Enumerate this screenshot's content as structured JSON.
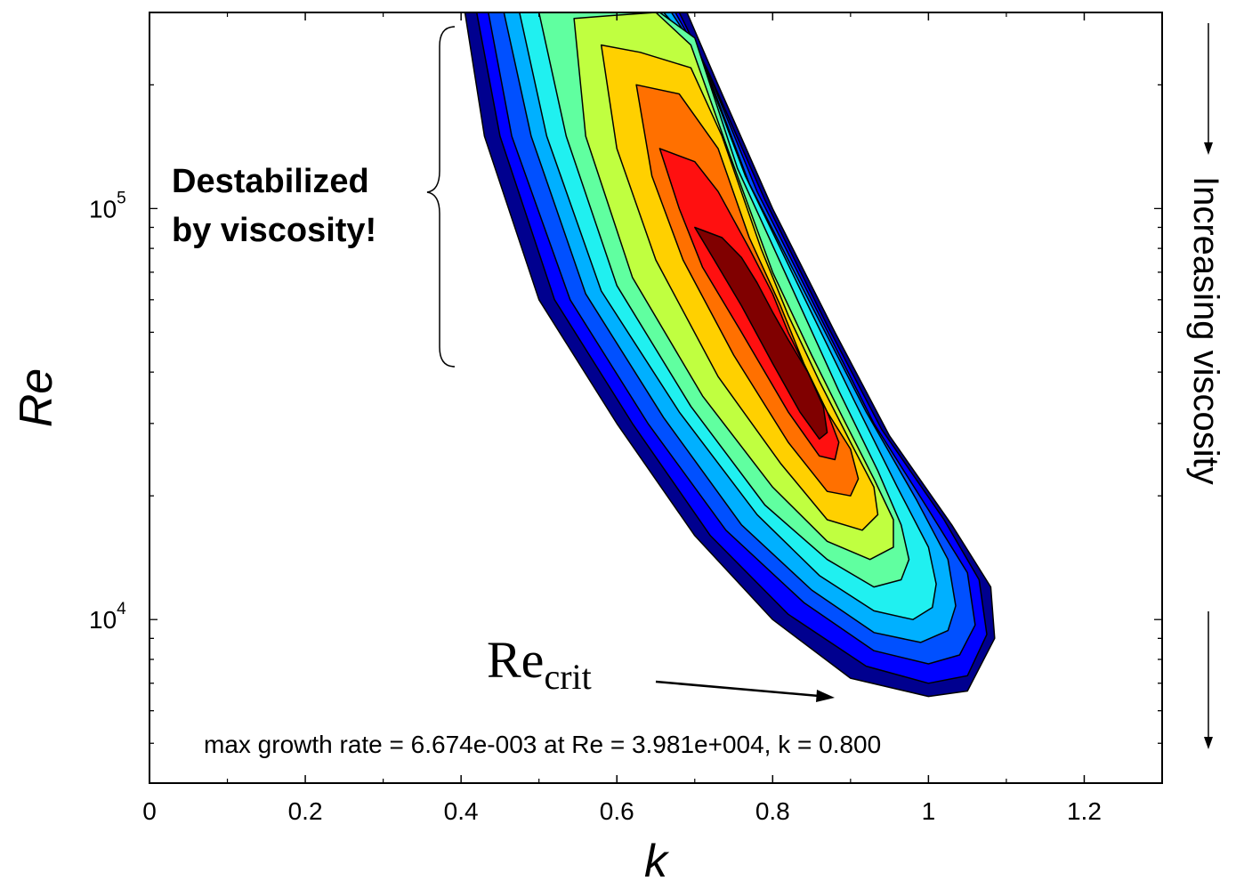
{
  "chart_data": {
    "type": "contour",
    "title": "",
    "xlabel": "k",
    "ylabel": "Re",
    "x_scale": "linear",
    "y_scale": "log",
    "xlim": [
      0,
      1.3
    ],
    "ylim": [
      4000,
      300000
    ],
    "x_ticks": [
      {
        "value": 0,
        "label": "0"
      },
      {
        "value": 0.2,
        "label": "0.2"
      },
      {
        "value": 0.4,
        "label": "0.4"
      },
      {
        "value": 0.6,
        "label": "0.6"
      },
      {
        "value": 0.8,
        "label": "0.8"
      },
      {
        "value": 1.0,
        "label": "1"
      },
      {
        "value": 1.2,
        "label": "1.2"
      }
    ],
    "y_ticks": [
      {
        "value": 10000,
        "base": "10",
        "exp": "4"
      },
      {
        "value": 100000,
        "base": "10",
        "exp": "5"
      }
    ],
    "grid": false,
    "colormap": "jet",
    "levels": [
      {
        "color": "#00008f",
        "points": [
          [
            0.405,
            300000
          ],
          [
            0.43,
            150000
          ],
          [
            0.5,
            60000
          ],
          [
            0.6,
            30000
          ],
          [
            0.7,
            16000
          ],
          [
            0.8,
            10000
          ],
          [
            0.9,
            7200
          ],
          [
            1.0,
            6500
          ],
          [
            1.05,
            6700
          ],
          [
            1.085,
            9000
          ],
          [
            1.08,
            12000
          ],
          [
            1.03,
            17000
          ],
          [
            0.95,
            28000
          ],
          [
            0.88,
            50000
          ],
          [
            0.8,
            100000
          ],
          [
            0.73,
            200000
          ],
          [
            0.69,
            300000
          ]
        ]
      },
      {
        "color": "#0000ff",
        "points": [
          [
            0.42,
            300000
          ],
          [
            0.45,
            150000
          ],
          [
            0.52,
            60000
          ],
          [
            0.62,
            30000
          ],
          [
            0.72,
            16000
          ],
          [
            0.82,
            10300
          ],
          [
            0.92,
            7700
          ],
          [
            1.0,
            7000
          ],
          [
            1.05,
            7300
          ],
          [
            1.075,
            9200
          ],
          [
            1.065,
            12500
          ],
          [
            1.02,
            17500
          ],
          [
            0.94,
            29000
          ],
          [
            0.87,
            52000
          ],
          [
            0.79,
            105000
          ],
          [
            0.72,
            210000
          ],
          [
            0.68,
            300000
          ]
        ]
      },
      {
        "color": "#0050ff",
        "points": [
          [
            0.435,
            300000
          ],
          [
            0.465,
            150000
          ],
          [
            0.54,
            60000
          ],
          [
            0.64,
            30000
          ],
          [
            0.74,
            16500
          ],
          [
            0.84,
            11000
          ],
          [
            0.93,
            8400
          ],
          [
            1.0,
            7800
          ],
          [
            1.04,
            8200
          ],
          [
            1.06,
            9700
          ],
          [
            1.05,
            13000
          ],
          [
            1.0,
            18500
          ],
          [
            0.93,
            30000
          ],
          [
            0.86,
            55000
          ],
          [
            0.78,
            110000
          ],
          [
            0.715,
            220000
          ],
          [
            0.675,
            300000
          ]
        ]
      },
      {
        "color": "#00b0ff",
        "points": [
          [
            0.455,
            300000
          ],
          [
            0.49,
            150000
          ],
          [
            0.56,
            62000
          ],
          [
            0.66,
            31000
          ],
          [
            0.76,
            17000
          ],
          [
            0.85,
            11800
          ],
          [
            0.93,
            9300
          ],
          [
            0.99,
            8800
          ],
          [
            1.025,
            9400
          ],
          [
            1.035,
            10800
          ],
          [
            1.025,
            14000
          ],
          [
            0.985,
            19500
          ],
          [
            0.92,
            32000
          ],
          [
            0.85,
            58000
          ],
          [
            0.77,
            115000
          ],
          [
            0.71,
            230000
          ],
          [
            0.67,
            300000
          ]
        ]
      },
      {
        "color": "#20f0f0",
        "points": [
          [
            0.475,
            300000
          ],
          [
            0.51,
            150000
          ],
          [
            0.58,
            63000
          ],
          [
            0.68,
            32000
          ],
          [
            0.78,
            18000
          ],
          [
            0.86,
            12800
          ],
          [
            0.93,
            10500
          ],
          [
            0.98,
            10000
          ],
          [
            1.005,
            10700
          ],
          [
            1.01,
            12200
          ],
          [
            1.0,
            15000
          ],
          [
            0.96,
            21000
          ],
          [
            0.905,
            34000
          ],
          [
            0.84,
            61000
          ],
          [
            0.765,
            120000
          ],
          [
            0.705,
            240000
          ],
          [
            0.66,
            300000
          ]
        ]
      },
      {
        "color": "#60ffa0",
        "points": [
          [
            0.5,
            300000
          ],
          [
            0.535,
            150000
          ],
          [
            0.6,
            65000
          ],
          [
            0.695,
            33000
          ],
          [
            0.79,
            19000
          ],
          [
            0.87,
            14000
          ],
          [
            0.93,
            12000
          ],
          [
            0.965,
            12500
          ],
          [
            0.975,
            14000
          ],
          [
            0.965,
            17000
          ],
          [
            0.935,
            23000
          ],
          [
            0.885,
            36000
          ],
          [
            0.825,
            64000
          ],
          [
            0.755,
            125000
          ],
          [
            0.7,
            260000
          ],
          [
            0.655,
            300000
          ]
        ]
      },
      {
        "color": "#c0ff40",
        "points": [
          [
            0.545,
            290000
          ],
          [
            0.56,
            150000
          ],
          [
            0.62,
            68000
          ],
          [
            0.71,
            35000
          ],
          [
            0.8,
            21000
          ],
          [
            0.87,
            15500
          ],
          [
            0.925,
            14000
          ],
          [
            0.955,
            15000
          ],
          [
            0.955,
            17500
          ],
          [
            0.93,
            22000
          ],
          [
            0.89,
            31000
          ],
          [
            0.85,
            44000
          ],
          [
            0.8,
            70000
          ],
          [
            0.745,
            135000
          ],
          [
            0.695,
            250000
          ],
          [
            0.65,
            300000
          ],
          [
            0.595,
            295000
          ]
        ]
      },
      {
        "color": "#ffd000",
        "points": [
          [
            0.58,
            250000
          ],
          [
            0.6,
            140000
          ],
          [
            0.65,
            75000
          ],
          [
            0.73,
            39000
          ],
          [
            0.81,
            24000
          ],
          [
            0.87,
            17500
          ],
          [
            0.915,
            16500
          ],
          [
            0.935,
            18000
          ],
          [
            0.93,
            21000
          ],
          [
            0.9,
            27000
          ],
          [
            0.86,
            38000
          ],
          [
            0.82,
            55000
          ],
          [
            0.785,
            80000
          ],
          [
            0.735,
            150000
          ],
          [
            0.695,
            220000
          ],
          [
            0.63,
            240000
          ]
        ]
      },
      {
        "color": "#ff7000",
        "points": [
          [
            0.625,
            200000
          ],
          [
            0.645,
            120000
          ],
          [
            0.685,
            75000
          ],
          [
            0.75,
            44000
          ],
          [
            0.82,
            27000
          ],
          [
            0.87,
            20500
          ],
          [
            0.9,
            20000
          ],
          [
            0.91,
            22000
          ],
          [
            0.9,
            26000
          ],
          [
            0.87,
            32000
          ],
          [
            0.84,
            42000
          ],
          [
            0.81,
            58000
          ],
          [
            0.77,
            85000
          ],
          [
            0.73,
            140000
          ],
          [
            0.68,
            190000
          ]
        ]
      },
      {
        "color": "#ff1010",
        "points": [
          [
            0.655,
            140000
          ],
          [
            0.68,
            100000
          ],
          [
            0.71,
            72000
          ],
          [
            0.76,
            50000
          ],
          [
            0.82,
            32000
          ],
          [
            0.86,
            25000
          ],
          [
            0.88,
            24500
          ],
          [
            0.885,
            27000
          ],
          [
            0.87,
            32000
          ],
          [
            0.845,
            40000
          ],
          [
            0.82,
            50000
          ],
          [
            0.8,
            62000
          ],
          [
            0.77,
            80000
          ],
          [
            0.73,
            110000
          ],
          [
            0.7,
            130000
          ]
        ]
      },
      {
        "color": "#800000",
        "points": [
          [
            0.7,
            90000
          ],
          [
            0.725,
            75000
          ],
          [
            0.76,
            58000
          ],
          [
            0.8,
            42000
          ],
          [
            0.835,
            32000
          ],
          [
            0.86,
            27500
          ],
          [
            0.87,
            28500
          ],
          [
            0.865,
            33000
          ],
          [
            0.845,
            40000
          ],
          [
            0.82,
            48000
          ],
          [
            0.8,
            56000
          ],
          [
            0.78,
            66000
          ],
          [
            0.76,
            76000
          ],
          [
            0.735,
            85000
          ]
        ]
      }
    ],
    "annotations": {
      "destabilized_line1": "Destabilized",
      "destabilized_line2": "by viscosity!",
      "recrit_main": "Re",
      "recrit_sub": "crit",
      "side_label": "Increasing viscosity",
      "max_text": "max growth rate = 6.674e-003 at Re = 3.981e+004, k = 0.800"
    },
    "legend": "none"
  }
}
